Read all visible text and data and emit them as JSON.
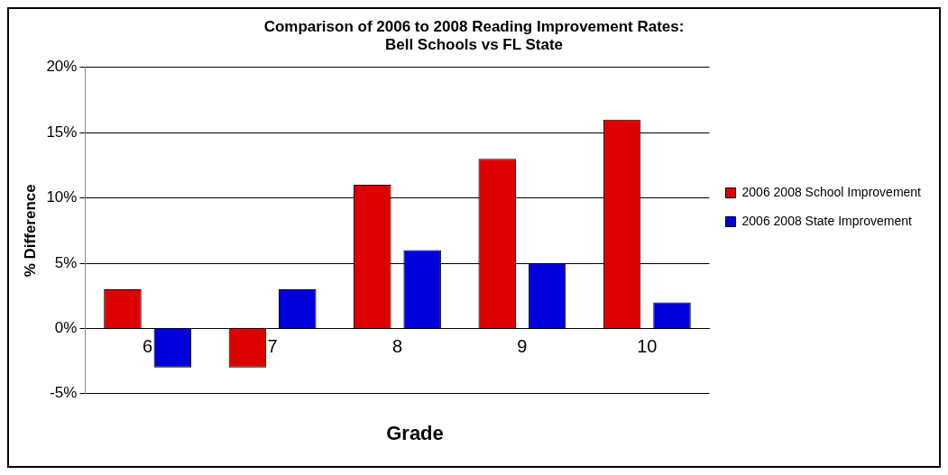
{
  "chart_data": {
    "type": "bar",
    "title": "Comparison of 2006 to 2008 Reading Improvement Rates:\nBell Schools vs FL State",
    "xlabel": "Grade",
    "ylabel": "% Difference",
    "categories": [
      "6",
      "7",
      "8",
      "9",
      "10"
    ],
    "series": [
      {
        "name": "2006 2008 School Improvement",
        "color": "#dd0000",
        "values": [
          3,
          -3,
          11,
          13,
          16
        ]
      },
      {
        "name": "2006 2008 State Improvement",
        "color": "#0000dd",
        "values": [
          -3,
          3,
          6,
          5,
          2
        ]
      }
    ],
    "ylim": [
      -5,
      20
    ],
    "yticks": [
      {
        "value": -5,
        "label": "-5%"
      },
      {
        "value": 0,
        "label": "0%"
      },
      {
        "value": 5,
        "label": "5%"
      },
      {
        "value": 10,
        "label": "10%"
      },
      {
        "value": 15,
        "label": "15%"
      },
      {
        "value": 20,
        "label": "20%"
      }
    ],
    "grid": "y",
    "legend": "right"
  }
}
